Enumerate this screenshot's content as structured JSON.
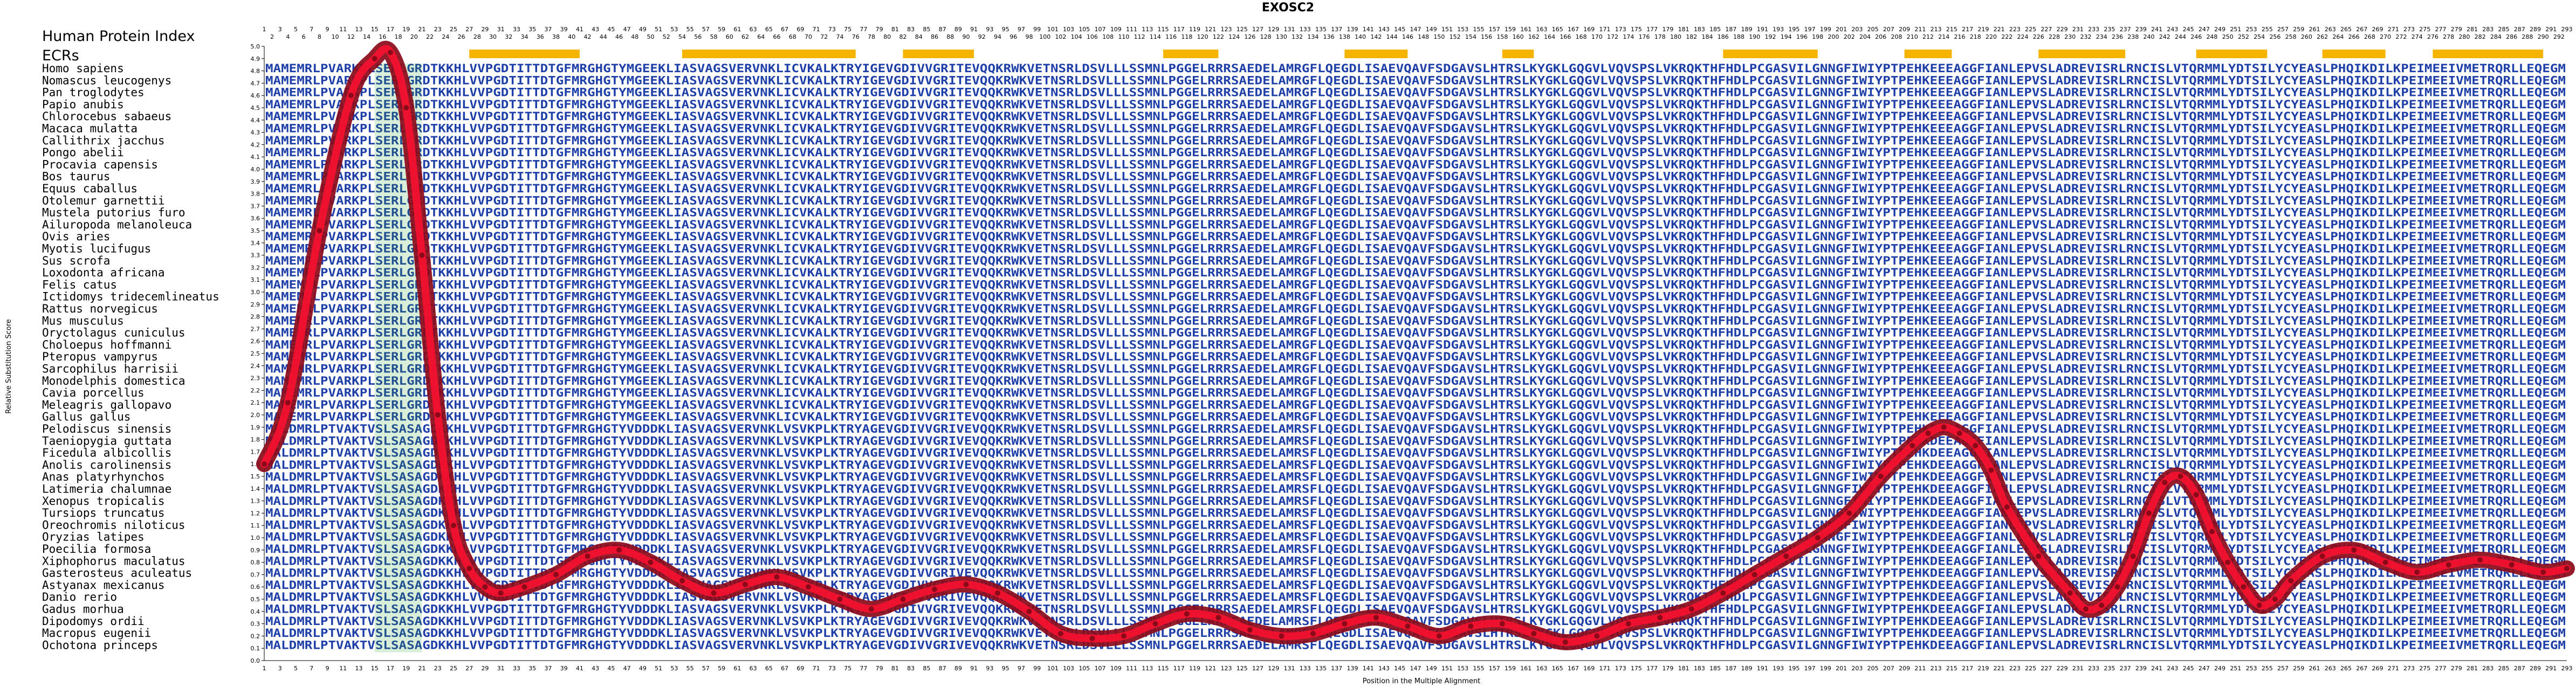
{
  "title": "EXOSC2",
  "header_labels": {
    "hpi": "Human Protein Index",
    "ecrs": "ECRs"
  },
  "colors": {
    "sequence": "#1f3fa8",
    "variant": "#2ea02e",
    "ecr_bar": "#f5b400",
    "curve_outer": "#8b0a1a",
    "curve_inner": "#ff1030"
  },
  "ecr_regions": [
    [
      27,
      41
    ],
    [
      54,
      76
    ],
    [
      82,
      91
    ],
    [
      115,
      122
    ],
    [
      138,
      146
    ],
    [
      158,
      162
    ],
    [
      186,
      198
    ],
    [
      209,
      215
    ],
    [
      226,
      237
    ],
    [
      246,
      255
    ],
    [
      262,
      270
    ],
    [
      276,
      290
    ]
  ],
  "sequences": {
    "human": "MAMEMRLPVARKPLSERLGRDTKKHLVVPGDTITTDTGFMRGHGTYMGEEKLIASVAGSVERVNKLICVKALKTRYIGEVGDIVVGRITEVQQKRWKVETNSRLDSVLLLSSMNLPGGELRRRSAEDELAMRGFLQEGDLISAEVQAVFSDGAVSLHTRSLKYGKLGQGVLVQVSPSLVKRQKTHFHDLPCGASVILGNNGFIWIYPTPEHKEEEAGGFIANLEPVSLADREVISRLRNCISLVTQRMMLYDTSILYCYEASLPHQIKDILKPEIMEEIVMETRQRLLEQEG",
    "fish": "MALDMRLPTVAKTVSLSASAGDKKHLVVPGDTITTDTGFMRGHGTYVDDDKLIASVAGSVERVNKLVSVKPLKTRYAGEVGDIVVGRIVEVQQKRWKVETNSRLDSVLLLSSMNLPGGELRRRSAEDELAMRSFLQEGDLISAEVQAVFSDGAVSLHTRSLKYGKLGQGVLVQVSPSLVKRQKTHFHDLPCGASVILGNNGFIWIYPTPEHKDEEAGGFIANLEPVSLADREVISRLRNCISLVTQRMMLYDTSILYCYEASLPHQIKDILKPEIMEEIVMETRQRLLEQEG"
  },
  "chart_data": {
    "type": "line",
    "title": "EXOSC2",
    "xlabel": "Position in the Multiple Alignment",
    "ylabel": "Relative Substitution Score",
    "xlim": [
      1,
      293
    ],
    "ylim": [
      0.0,
      5.0
    ],
    "yticks": [
      0.0,
      0.1,
      0.2,
      0.3,
      0.4,
      0.5,
      0.6,
      0.7,
      0.8,
      0.9,
      1.0,
      1.1,
      1.2,
      1.3,
      1.4,
      1.5,
      1.6,
      1.7,
      1.8,
      1.9,
      2.0,
      2.1,
      2.2,
      2.3,
      2.4,
      2.5,
      2.6,
      2.7,
      2.8,
      2.9,
      3.0,
      3.1,
      3.2,
      3.3,
      3.4,
      3.5,
      3.6,
      3.7,
      3.8,
      3.9,
      4.0,
      4.1,
      4.2,
      4.3,
      4.4,
      4.5,
      4.6,
      4.7,
      4.8,
      4.9,
      5.0
    ],
    "species": [
      "Homo sapiens",
      "Nomascus leucogenys",
      "Pan troglodytes",
      "Papio anubis",
      "Chlorocebus sabaeus",
      "Macaca mulatta",
      "Callithrix jacchus",
      "Pongo abelii",
      "Procavia capensis",
      "Bos taurus",
      "Equus caballus",
      "Otolemur garnettii",
      "Mustela putorius furo",
      "Ailuropoda melanoleuca",
      "Ovis aries",
      "Myotis lucifugus",
      "Sus scrofa",
      "Loxodonta africana",
      "Felis catus",
      "Ictidomys tridecemlineatus",
      "Rattus norvegicus",
      "Mus musculus",
      "Oryctolagus cuniculus",
      "Choloepus hoffmanni",
      "Pteropus vampyrus",
      "Sarcophilus harrisii",
      "Monodelphis domestica",
      "Cavia porcellus",
      "Meleagris gallopavo",
      "Gallus gallus",
      "Pelodiscus sinensis",
      "Taeniopygia guttata",
      "Ficedula albicollis",
      "Anolis carolinensis",
      "Anas platyrhynchos",
      "Latimeria chalumnae",
      "Xenopus tropicalis",
      "Tursiops truncatus",
      "Oreochromis niloticus",
      "Oryzias latipes",
      "Poecilia formosa",
      "Xiphophorus maculatus",
      "Gasterosteus aculeatus",
      "Astyanax mexicanus",
      "Danio rerio",
      "Gadus morhua",
      "Dipodomys ordii",
      "Macropus eugenii",
      "Ochotona princeps"
    ],
    "series": [
      {
        "x": [
          1,
          4,
          8,
          12,
          15,
          17,
          19,
          21,
          23,
          25,
          27,
          29,
          31,
          34,
          38,
          42,
          46,
          50,
          54,
          58,
          62,
          66,
          70,
          74,
          78,
          82,
          86,
          90,
          94,
          98,
          102,
          106,
          110,
          114,
          118,
          122,
          126,
          130,
          134,
          138,
          142,
          146,
          150,
          154,
          158,
          162,
          166,
          170,
          174,
          178,
          182,
          186,
          190,
          194,
          198,
          202,
          206,
          210,
          212,
          214,
          216,
          218,
          220,
          222,
          226,
          230,
          232,
          234,
          236,
          238,
          240,
          242,
          244,
          246,
          248,
          250,
          252,
          254,
          256,
          258,
          262,
          266,
          270,
          274,
          278,
          282,
          286,
          290,
          293
        ],
        "y": [
          1.6,
          2.1,
          3.5,
          4.6,
          4.9,
          4.95,
          4.5,
          3.3,
          2.0,
          1.1,
          0.75,
          0.6,
          0.55,
          0.6,
          0.7,
          0.85,
          0.9,
          0.8,
          0.65,
          0.55,
          0.62,
          0.68,
          0.6,
          0.5,
          0.42,
          0.5,
          0.58,
          0.62,
          0.55,
          0.4,
          0.22,
          0.18,
          0.2,
          0.3,
          0.38,
          0.35,
          0.25,
          0.2,
          0.22,
          0.3,
          0.35,
          0.28,
          0.2,
          0.28,
          0.3,
          0.22,
          0.15,
          0.2,
          0.3,
          0.35,
          0.42,
          0.55,
          0.7,
          0.85,
          1.0,
          1.2,
          1.5,
          1.75,
          1.85,
          1.9,
          1.85,
          1.75,
          1.55,
          1.25,
          0.85,
          0.55,
          0.42,
          0.45,
          0.6,
          0.85,
          1.2,
          1.45,
          1.5,
          1.35,
          1.05,
          0.8,
          0.6,
          0.45,
          0.5,
          0.65,
          0.85,
          0.9,
          0.8,
          0.72,
          0.78,
          0.82,
          0.78,
          0.72,
          0.75
        ]
      }
    ]
  }
}
